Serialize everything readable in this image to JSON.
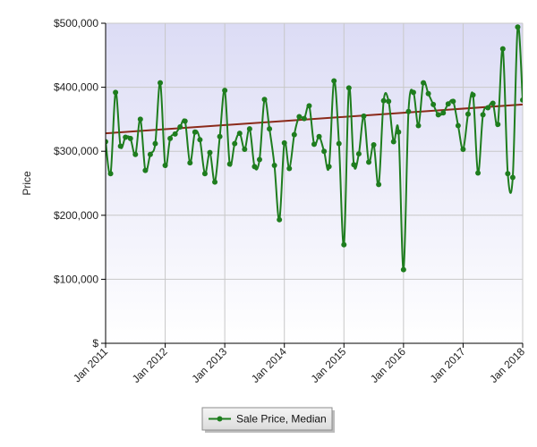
{
  "chart_data": {
    "type": "line",
    "title": "",
    "xlabel": "",
    "ylabel": "Price",
    "ylim": [
      0,
      500000
    ],
    "y_ticks": [
      0,
      100000,
      200000,
      300000,
      400000,
      500000
    ],
    "y_tick_labels": [
      "$",
      "$100,000",
      "$200,000",
      "$300,000",
      "$400,000",
      "$500,000"
    ],
    "x_range": [
      "2011-01",
      "2018-01"
    ],
    "x_tick_labels": [
      "Jan 2011",
      "Jan 2012",
      "Jan 2013",
      "Jan 2014",
      "Jan 2015",
      "Jan 2016",
      "Jan 2017",
      "Jan 2018"
    ],
    "grid": true,
    "legend_position": "bottom-center",
    "series": [
      {
        "name": "Sale Price, Median",
        "color": "#1e7d1e",
        "marker": "circle",
        "x": [
          "2011-01",
          "2011-02",
          "2011-03",
          "2011-04",
          "2011-05",
          "2011-06",
          "2011-07",
          "2011-08",
          "2011-09",
          "2011-10",
          "2011-11",
          "2011-12",
          "2012-01",
          "2012-02",
          "2012-03",
          "2012-04",
          "2012-05",
          "2012-06",
          "2012-07",
          "2012-08",
          "2012-09",
          "2012-10",
          "2012-11",
          "2012-12",
          "2013-01",
          "2013-02",
          "2013-03",
          "2013-04",
          "2013-05",
          "2013-06",
          "2013-07",
          "2013-08",
          "2013-09",
          "2013-10",
          "2013-11",
          "2013-12",
          "2014-01",
          "2014-02",
          "2014-03",
          "2014-04",
          "2014-05",
          "2014-06",
          "2014-07",
          "2014-08",
          "2014-09",
          "2014-10",
          "2014-11",
          "2014-12",
          "2015-01",
          "2015-02",
          "2015-03",
          "2015-04",
          "2015-05",
          "2015-06",
          "2015-07",
          "2015-08",
          "2015-09",
          "2015-10",
          "2015-11",
          "2015-12",
          "2016-01",
          "2016-02",
          "2016-03",
          "2016-04",
          "2016-05",
          "2016-06",
          "2016-07",
          "2016-08",
          "2016-09",
          "2016-10",
          "2016-11",
          "2016-12",
          "2017-01",
          "2017-02",
          "2017-03",
          "2017-04",
          "2017-05",
          "2017-06",
          "2017-07",
          "2017-08",
          "2017-09",
          "2017-10",
          "2017-11",
          "2017-12",
          "2018-01"
        ],
        "values": [
          315000,
          265000,
          392000,
          308000,
          322000,
          320000,
          295000,
          350000,
          270000,
          295000,
          312000,
          407000,
          278000,
          320000,
          327000,
          338000,
          347000,
          282000,
          330000,
          318000,
          265000,
          298000,
          252000,
          323000,
          395000,
          280000,
          312000,
          328000,
          303000,
          335000,
          276000,
          287000,
          381000,
          335000,
          278000,
          193000,
          313000,
          273000,
          326000,
          354000,
          351000,
          371000,
          311000,
          323000,
          300000,
          276000,
          410000,
          312000,
          154000,
          399000,
          279000,
          296000,
          355000,
          283000,
          310000,
          248000,
          379000,
          378000,
          315000,
          330000,
          115000,
          362000,
          392000,
          340000,
          407000,
          390000,
          373000,
          357000,
          360000,
          374000,
          378000,
          340000,
          303000,
          358000,
          388000,
          266000,
          357000,
          368000,
          375000,
          342000,
          460000,
          265000,
          259000,
          494000,
          380000
        ]
      },
      {
        "name": "",
        "type": "trend",
        "color": "#8b2a1a",
        "x": [
          "2011-01",
          "2018-01"
        ],
        "values": [
          328000,
          373000
        ]
      }
    ]
  }
}
